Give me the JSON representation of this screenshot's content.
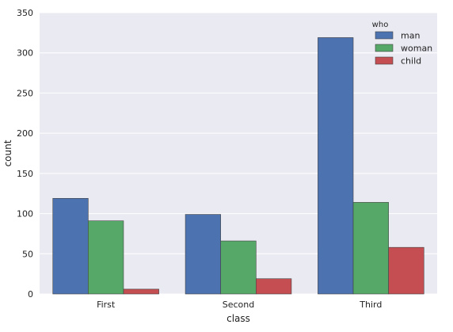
{
  "chart_data": {
    "type": "bar",
    "title": "",
    "xlabel": "class",
    "ylabel": "count",
    "categories": [
      "First",
      "Second",
      "Third"
    ],
    "series": [
      {
        "name": "man",
        "values": [
          119,
          99,
          319
        ],
        "color": "#4c72b0"
      },
      {
        "name": "woman",
        "values": [
          91,
          66,
          114
        ],
        "color": "#55a868"
      },
      {
        "name": "child",
        "values": [
          6,
          19,
          58
        ],
        "color": "#c44e52"
      }
    ],
    "ylim": [
      0,
      350
    ],
    "yticks": [
      0,
      50,
      100,
      150,
      200,
      250,
      300,
      350
    ],
    "grid": true,
    "background_color": "#eaeaf2",
    "legend": {
      "title": "who",
      "placement": "top-right"
    }
  }
}
